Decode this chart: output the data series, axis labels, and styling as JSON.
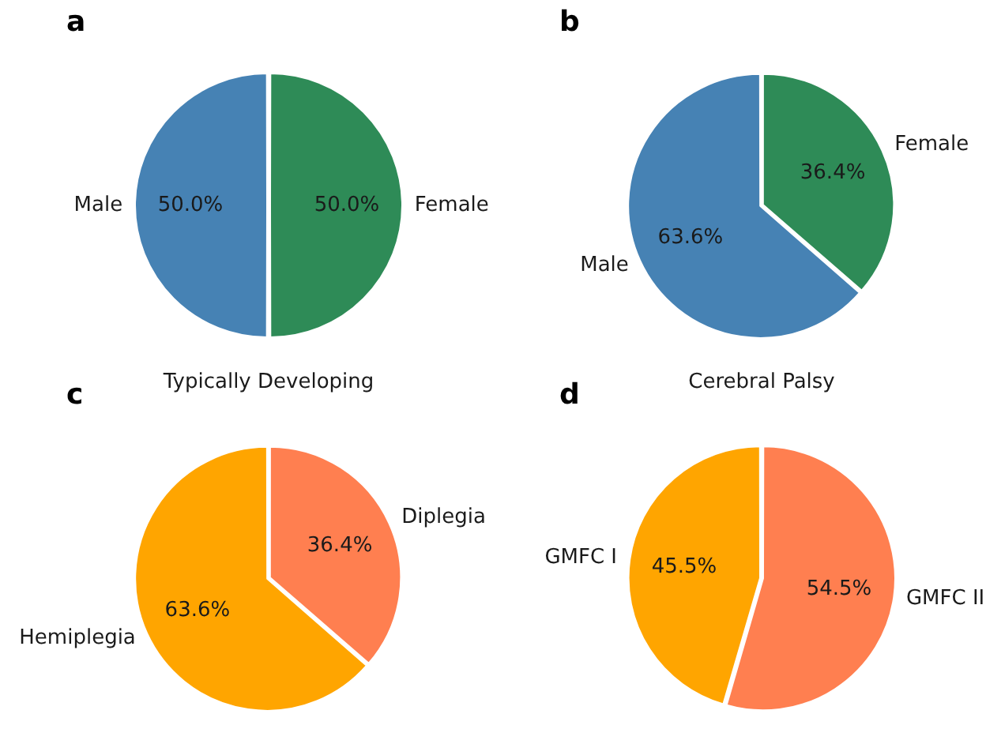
{
  "chart_data": [
    {
      "type": "pie",
      "title": "a",
      "xlabel": "Typically Developing",
      "categories": [
        "Male",
        "Female"
      ],
      "values": [
        50.0,
        50.0
      ],
      "colors": [
        "#4682b4",
        "#2e8b57"
      ],
      "value_labels": [
        "50.0%",
        "50.0%"
      ]
    },
    {
      "type": "pie",
      "title": "b",
      "xlabel": "Cerebral Palsy",
      "categories": [
        "Male",
        "Female"
      ],
      "values": [
        63.6,
        36.4
      ],
      "colors": [
        "#4682b4",
        "#2e8b57"
      ],
      "value_labels": [
        "63.6%",
        "36.4%"
      ]
    },
    {
      "type": "pie",
      "title": "c",
      "categories": [
        "Hemiplegia",
        "Diplegia"
      ],
      "values": [
        63.6,
        36.4
      ],
      "colors": [
        "#ffa500",
        "#ff7f50"
      ],
      "value_labels": [
        "63.6%",
        "36.4%"
      ]
    },
    {
      "type": "pie",
      "title": "d",
      "categories": [
        "GMFC I",
        "GMFC II"
      ],
      "values": [
        45.5,
        54.5
      ],
      "colors": [
        "#ffa500",
        "#ff7f50"
      ],
      "value_labels": [
        "45.5%",
        "54.5%"
      ]
    }
  ]
}
